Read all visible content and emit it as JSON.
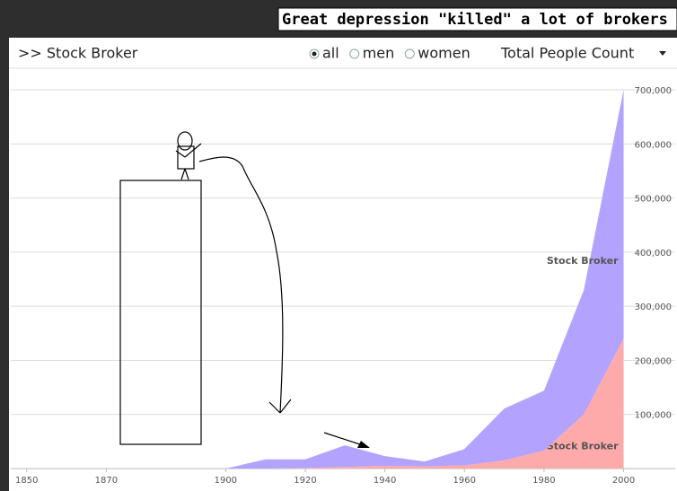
{
  "ui": {
    "annotation": "Great depression \"killed\" a lot of brokers",
    "breadcrumb": ">> Stock Broker",
    "options": [
      "all",
      "men",
      "women"
    ],
    "selected_option": 0,
    "measure": "Total People Count"
  },
  "chart_data": {
    "type": "area",
    "stacked": true,
    "x": [
      1900,
      1910,
      1920,
      1930,
      1940,
      1950,
      1960,
      1970,
      1980,
      1990,
      2000
    ],
    "series": [
      {
        "name": "Stock Broker",
        "color": "#ffaaaa",
        "values": [
          0,
          0,
          1000,
          3000,
          5000,
          4000,
          6000,
          15000,
          33000,
          100000,
          240000
        ]
      },
      {
        "name": "Stock Broker",
        "color": "#b3a3ff",
        "values": [
          0,
          17000,
          16000,
          40000,
          18000,
          9000,
          30000,
          96000,
          111000,
          230000,
          460000
        ]
      }
    ],
    "xlim": [
      1846,
      2008
    ],
    "xticks": [
      1850,
      1870,
      1900,
      1920,
      1940,
      1960,
      1980,
      2000
    ],
    "ylim": [
      0,
      720000
    ],
    "yticks": [
      {
        "value": 100000,
        "label": "100,000"
      },
      {
        "value": 200000,
        "label": "200,000"
      },
      {
        "value": 300000,
        "label": "300,000"
      },
      {
        "value": 400000,
        "label": "400,000"
      },
      {
        "value": 500000,
        "label": "500,000"
      },
      {
        "value": 600000,
        "label": "600,000"
      },
      {
        "value": 700000,
        "label": "700,000"
      }
    ],
    "grid": true
  }
}
